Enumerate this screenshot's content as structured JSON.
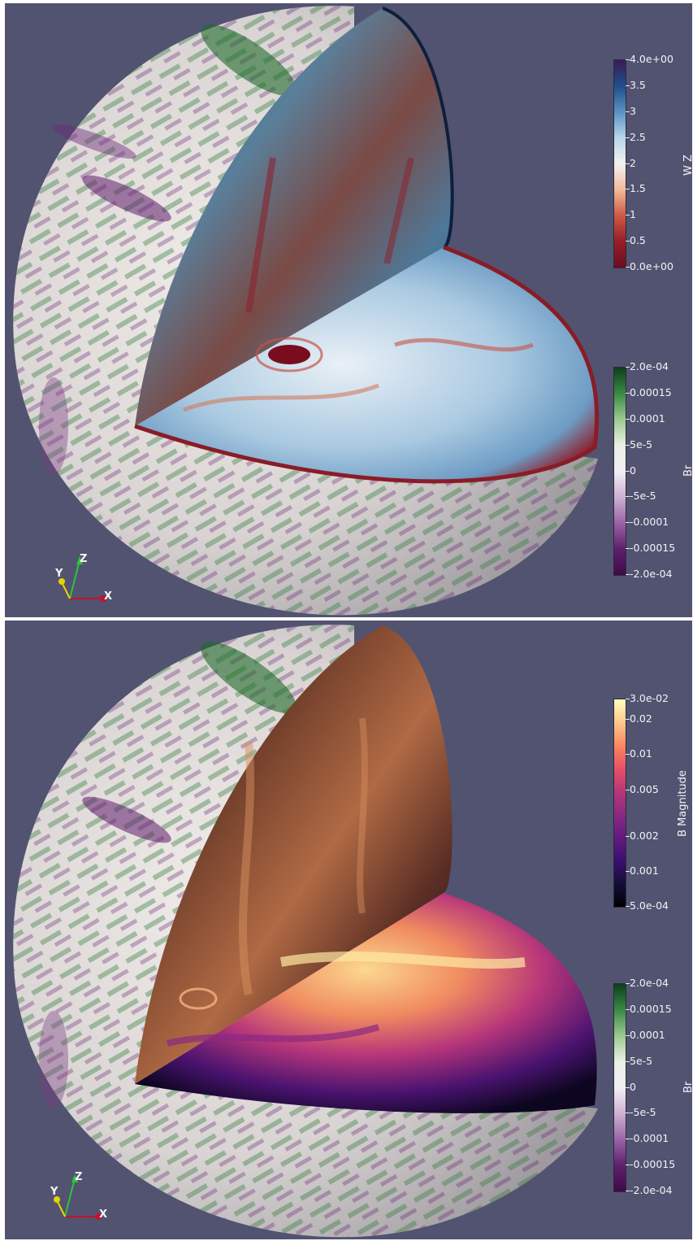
{
  "panels": [
    {
      "id": "top",
      "slice_field": "W Z",
      "colorbars": [
        {
          "title": "W Z",
          "gradient": [
            "#3b1b56",
            "#1f4e8a",
            "#5a93c4",
            "#b9d6ea",
            "#f3f2f1",
            "#f1b99a",
            "#cc5a43",
            "#981d27",
            "#6a0d22"
          ],
          "ticks": [
            "4.0e+00",
            "3.5",
            "3",
            "2.5",
            "2",
            "1.5",
            "1",
            "0.5",
            "0.0e+00"
          ]
        },
        {
          "title": "Br",
          "gradient": [
            "#0d3f1c",
            "#3a8a44",
            "#9cc98f",
            "#e9f1e4",
            "#f3eef4",
            "#cdb1d3",
            "#9a63a6",
            "#5f1f6e",
            "#3c0a48"
          ],
          "ticks": [
            "2.0e-04",
            "0.00015",
            "0.0001",
            "5e-5",
            "0",
            "-5e-5",
            "-0.0001",
            "-0.00015",
            "-2.0e-04"
          ]
        }
      ]
    },
    {
      "id": "bottom",
      "slice_field": "B Magnitude",
      "colorbars": [
        {
          "title": "B Magnitude",
          "gradient": [
            "#fcfdbf",
            "#fec98d",
            "#fb8761",
            "#e65164",
            "#b73779",
            "#8c2981",
            "#641a80",
            "#3b0f70",
            "#150e37",
            "#000004"
          ],
          "ticks": [
            "3.0e-02",
            "0.02",
            "0.01",
            "0.005",
            "0.002",
            "0.001",
            "5.0e-04"
          ],
          "tick_values": [
            0.03,
            0.02,
            0.01,
            0.005,
            0.002,
            0.001,
            0.0005
          ],
          "log_range": [
            0.0005,
            0.03
          ]
        },
        {
          "title": "Br",
          "gradient": [
            "#0d3f1c",
            "#3a8a44",
            "#9cc98f",
            "#e9f1e4",
            "#f3eef4",
            "#cdb1d3",
            "#9a63a6",
            "#5f1f6e",
            "#3c0a48"
          ],
          "ticks": [
            "2.0e-04",
            "0.00015",
            "0.0001",
            "5e-5",
            "0",
            "-5e-5",
            "-0.0001",
            "-0.00015",
            "-2.0e-04"
          ]
        }
      ]
    }
  ],
  "axes_triad": {
    "x": "X",
    "y": "Y",
    "z": "Z",
    "x_color": "#c8102e",
    "y_color": "#e6d200",
    "z_color": "#2cc43a"
  },
  "colors": {
    "background": "#525370"
  }
}
